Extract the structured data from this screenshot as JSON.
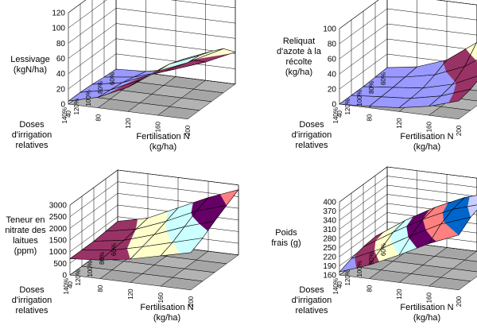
{
  "chart_data": [
    {
      "type": "surface",
      "title": "",
      "zlabel": [
        "Lessivage",
        "(kgN/ha)"
      ],
      "xlabel": [
        "Fertilisation N",
        "(kg/ha)"
      ],
      "ylabel": [
        "Doses",
        "d'irrigation",
        "relatives"
      ],
      "x": [
        "40",
        "80",
        "120",
        "160",
        "200"
      ],
      "y": [
        "140%",
        "120%",
        "100%",
        "80%",
        "60%"
      ],
      "zticks": [
        "0",
        "20",
        "40",
        "60",
        "80",
        "100",
        "120"
      ],
      "zlim": [
        0,
        120
      ],
      "band_step": 20,
      "z": [
        [
          4,
          14,
          32,
          58,
          74
        ],
        [
          4,
          12,
          30,
          56,
          72
        ],
        [
          3,
          10,
          26,
          50,
          66
        ],
        [
          1,
          6,
          18,
          38,
          58
        ],
        [
          0,
          2,
          10,
          24,
          42
        ]
      ]
    },
    {
      "type": "surface",
      "title": "",
      "zlabel": [
        "Reliquat",
        "d'azote à la",
        "récolte",
        "(kg/ha)"
      ],
      "xlabel": [
        "Fertilisation N",
        "(kg/ha)"
      ],
      "ylabel": [
        "Doses",
        "d'irrigation",
        "relatives"
      ],
      "x": [
        "40",
        "80",
        "120",
        "160",
        "200"
      ],
      "y": [
        "140%",
        "120%",
        "100%",
        "80%",
        "60%"
      ],
      "zticks": [
        "0",
        "20",
        "40",
        "60",
        "80",
        "100"
      ],
      "zlim": [
        0,
        100
      ],
      "band_step": 20,
      "z": [
        [
          0,
          2,
          5,
          12,
          24
        ],
        [
          0,
          3,
          6,
          14,
          28
        ],
        [
          0,
          4,
          8,
          18,
          36
        ],
        [
          1,
          6,
          14,
          30,
          56
        ],
        [
          2,
          8,
          22,
          50,
          100
        ]
      ]
    },
    {
      "type": "surface",
      "title": "",
      "zlabel": [
        "Teneur en",
        "nitrate des",
        "laitues",
        "(ppm)"
      ],
      "xlabel": [
        "Fertilisation N",
        "(kg/ha)"
      ],
      "ylabel": [
        "Doses",
        "d'irrigation",
        "relatives"
      ],
      "x": [
        "40",
        "80",
        "120",
        "160",
        "200"
      ],
      "y": [
        "140%",
        "120%",
        "100%",
        "80%",
        "60%"
      ],
      "zticks": [
        "0",
        "500",
        "1000",
        "1500",
        "2000",
        "2500",
        "3000"
      ],
      "zlim": [
        0,
        3000
      ],
      "band_step": 500,
      "z": [
        [
          700,
          800,
          1000,
          1300,
          1600
        ],
        [
          700,
          850,
          1150,
          1500,
          1850
        ],
        [
          700,
          900,
          1300,
          1800,
          2200
        ],
        [
          750,
          1000,
          1500,
          2100,
          2500
        ],
        [
          800,
          1100,
          1700,
          2300,
          2800
        ]
      ]
    },
    {
      "type": "surface",
      "title": "",
      "zlabel": [
        "Poids",
        "frais (g)"
      ],
      "xlabel": [
        "Fertilisation N",
        "(kg/ha)"
      ],
      "ylabel": [
        "Doses",
        "d'irrigation",
        "relatives"
      ],
      "x": [
        "40",
        "80",
        "120",
        "160",
        "200"
      ],
      "y": [
        "140%",
        "120%",
        "100%",
        "80%",
        "60%"
      ],
      "zticks": [
        "160",
        "190",
        "220",
        "250",
        "280",
        "310",
        "340",
        "370",
        "400"
      ],
      "zlim": [
        160,
        400
      ],
      "band_step": 30,
      "z": [
        [
          170,
          205,
          250,
          300,
          340
        ],
        [
          185,
          230,
          285,
          335,
          370
        ],
        [
          195,
          255,
          310,
          355,
          385
        ],
        [
          200,
          265,
          320,
          365,
          395
        ],
        [
          190,
          250,
          300,
          340,
          370
        ]
      ]
    }
  ]
}
